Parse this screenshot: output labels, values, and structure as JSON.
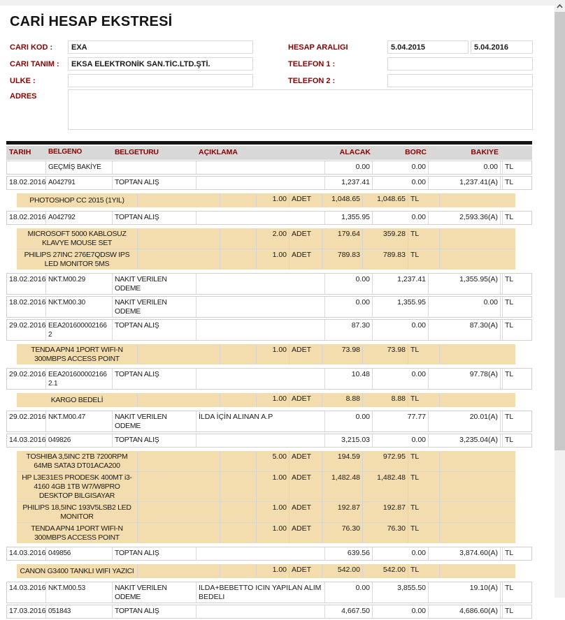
{
  "colors": {
    "accent": "#8B0000",
    "highlight": "#F3DDAE",
    "header_bg": "#D8D8D8"
  },
  "page": {
    "title": "CARİ HESAP EKSTRESİ"
  },
  "form": {
    "cari_kod_label": "CARI KOD :",
    "cari_kod_value": "EXA",
    "cari_tanim_label": "CARI TANIM :",
    "cari_tanim_value": "EKSA ELEKTRONİK SAN.TİC.LTD.ŞTİ.",
    "ulke_label": "ULKE :",
    "ulke_value": "",
    "adres_label": "ADRES",
    "adres_value": "",
    "hesap_araligi_label": "HESAP ARALIGI",
    "hesap_start": "5.04.2015",
    "hesap_end": "5.04.2016",
    "telefon1_label": "TELEFON 1 :",
    "telefon1_value": "",
    "telefon2_label": "TELEFON 2 :",
    "telefon2_value": ""
  },
  "table": {
    "headers": {
      "tarih": "TARIH",
      "belgeno": "BELGENO",
      "belgeturu": "BELGETURU",
      "aciklama": "AÇIKLAMA",
      "alacak": "ALACAK",
      "borc": "BORC",
      "bakiye": "BAKIYE"
    },
    "rows": [
      {
        "type": "main",
        "tarih": "",
        "belgeno": "GEÇMİŞ BAKİYE",
        "belgeturu": "",
        "aciklama": "",
        "alacak": "0.00",
        "borc": "0.00",
        "bakiye": "0.00",
        "para": "TL"
      },
      {
        "type": "main",
        "tarih": "18.02.2016",
        "belgeno": "A042791",
        "belgeturu": "TOPTAN ALIŞ",
        "aciklama": "",
        "alacak": "1,237.41",
        "borc": "0.00",
        "bakiye": "1,237.41(A)",
        "para": "TL"
      },
      {
        "type": "details",
        "items": [
          {
            "desc": "PHOTOSHOP CC 2015 (1YIL)",
            "qty": "1.00",
            "unit": "ADET",
            "tutar": "1,048.65",
            "toplam": "1,048.65",
            "para": "TL"
          }
        ]
      },
      {
        "type": "main",
        "tarih": "18.02.2016",
        "belgeno": "A042792",
        "belgeturu": "TOPTAN ALIŞ",
        "aciklama": "",
        "alacak": "1,355.95",
        "borc": "0.00",
        "bakiye": "2,593.36(A)",
        "para": "TL"
      },
      {
        "type": "details",
        "items": [
          {
            "desc": "MICROSOFT 5000 KABLOSUZ KLAVYE MOUSE SET",
            "qty": "2.00",
            "unit": "ADET",
            "tutar": "179.64",
            "toplam": "359.28",
            "para": "TL"
          },
          {
            "desc": "PHILIPS 27INC 276E7QDSW IPS LED MONITOR 5MS",
            "qty": "1.00",
            "unit": "ADET",
            "tutar": "789.83",
            "toplam": "789.83",
            "para": "TL"
          }
        ]
      },
      {
        "type": "main",
        "tarih": "18.02.2016",
        "belgeno": "NKT.M00.29",
        "belgeturu": "NAKIT VERILEN ODEME",
        "aciklama": "",
        "alacak": "0.00",
        "borc": "1,237.41",
        "bakiye": "1,355.95(A)",
        "para": "TL"
      },
      {
        "type": "main",
        "tarih": "18.02.2016",
        "belgeno": "NKT.M00.30",
        "belgeturu": "NAKIT VERILEN ODEME",
        "aciklama": "",
        "alacak": "0.00",
        "borc": "1,355.95",
        "bakiye": "0.00",
        "para": "TL"
      },
      {
        "type": "main",
        "tarih": "29.02.2016",
        "belgeno": "EEA2016000021662",
        "belgeturu": "TOPTAN ALIŞ",
        "aciklama": "",
        "alacak": "87.30",
        "borc": "0.00",
        "bakiye": "87.30(A)",
        "para": "TL"
      },
      {
        "type": "details",
        "items": [
          {
            "desc": "TENDA APN4 1PORT WIFI-N 300MBPS ACCESS POINT",
            "qty": "1.00",
            "unit": "ADET",
            "tutar": "73.98",
            "toplam": "73.98",
            "para": "TL"
          }
        ]
      },
      {
        "type": "main",
        "tarih": "29.02.2016",
        "belgeno": "EEA2016000021662.1",
        "belgeturu": "TOPTAN ALIŞ",
        "aciklama": "",
        "alacak": "10.48",
        "borc": "0.00",
        "bakiye": "97.78(A)",
        "para": "TL"
      },
      {
        "type": "details",
        "items": [
          {
            "desc": "KARGO BEDELİ",
            "qty": "1.00",
            "unit": "ADET",
            "tutar": "8.88",
            "toplam": "8.88",
            "para": "TL"
          }
        ]
      },
      {
        "type": "main",
        "tarih": "29.02.2016",
        "belgeno": "NKT.M00.47",
        "belgeturu": "NAKIT VERILEN ODEME",
        "aciklama": "İLDA İÇİN ALINAN A.P",
        "alacak": "0.00",
        "borc": "77.77",
        "bakiye": "20.01(A)",
        "para": "TL"
      },
      {
        "type": "main",
        "tarih": "14.03.2016",
        "belgeno": "049826",
        "belgeturu": "TOPTAN ALIŞ",
        "aciklama": "",
        "alacak": "3,215.03",
        "borc": "0.00",
        "bakiye": "3,235.04(A)",
        "para": "TL"
      },
      {
        "type": "details",
        "items": [
          {
            "desc": "TOSHIBA 3,5INC 2TB 7200RPM 64MB SATA3 DT01ACA200",
            "qty": "5.00",
            "unit": "ADET",
            "tutar": "194.59",
            "toplam": "972.95",
            "para": "TL"
          },
          {
            "desc": "HP L3E31ES PRODESK 400MT i3-4160 4GB 1TB W7/W8PRO DESKTOP BILGISAYAR",
            "qty": "1.00",
            "unit": "ADET",
            "tutar": "1,482.48",
            "toplam": "1,482.48",
            "para": "TL"
          },
          {
            "desc": "PHILIPS 18,5INC 193V5LSB2 LED MONITOR",
            "qty": "1.00",
            "unit": "ADET",
            "tutar": "192.87",
            "toplam": "192.87",
            "para": "TL"
          },
          {
            "desc": "TENDA APN4 1PORT WIFI-N 300MBPS ACCESS POINT",
            "qty": "1.00",
            "unit": "ADET",
            "tutar": "76.30",
            "toplam": "76.30",
            "para": "TL"
          }
        ]
      },
      {
        "type": "main",
        "tarih": "14.03.2016",
        "belgeno": "049856",
        "belgeturu": "TOPTAN ALIŞ",
        "aciklama": "",
        "alacak": "639.56",
        "borc": "0.00",
        "bakiye": "3,874.60(A)",
        "para": "TL"
      },
      {
        "type": "details",
        "items": [
          {
            "desc": "CANON G3400 TANKLI WIFI YAZICI",
            "qty": "1.00",
            "unit": "ADET",
            "tutar": "542.00",
            "toplam": "542.00",
            "para": "TL"
          }
        ]
      },
      {
        "type": "main",
        "tarih": "14.03.2016",
        "belgeno": "NKT.M00.53",
        "belgeturu": "NAKIT VERILEN ODEME",
        "aciklama": "ILDA+BEBETTO ICIN YAPILAN ALIM BEDELI",
        "alacak": "0.00",
        "borc": "3,855.50",
        "bakiye": "19.10(A)",
        "para": "TL"
      },
      {
        "type": "main",
        "tarih": "17.03.2016",
        "belgeno": "051843",
        "belgeturu": "TOPTAN ALIŞ",
        "aciklama": "",
        "alacak": "4,667.50",
        "borc": "0.00",
        "bakiye": "4,686.60(A)",
        "para": "TL"
      }
    ]
  }
}
